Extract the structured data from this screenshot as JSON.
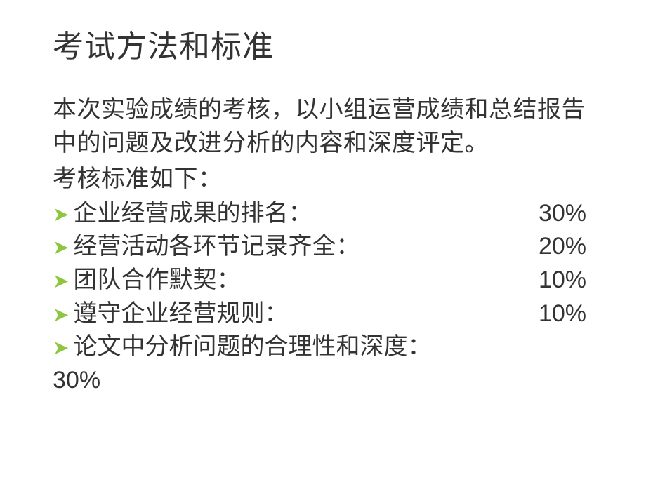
{
  "title": "考试方法和标准",
  "description": "本次实验成绩的考核，以小组运营成绩和总结报告中的问题及改进分析的内容和深度评定。",
  "subtitle": "考核标准如下：",
  "bullet_color": "#8fc640",
  "text_color": "#333333",
  "background_color": "#ffffff",
  "title_fontsize": 44,
  "body_fontsize": 34,
  "criteria": [
    {
      "label": "企业经营成果的排名：",
      "weight": "30%",
      "weight_inline": true
    },
    {
      "label": "经营活动各环节记录齐全：",
      "weight": "20%",
      "weight_inline": true
    },
    {
      "label": "团队合作默契：",
      "weight": "10%",
      "weight_inline": true
    },
    {
      "label": "遵守企业经营规则：",
      "weight": "10%",
      "weight_inline": true
    },
    {
      "label": "论文中分析问题的合理性和深度：",
      "weight": "30%",
      "weight_inline": false
    }
  ]
}
